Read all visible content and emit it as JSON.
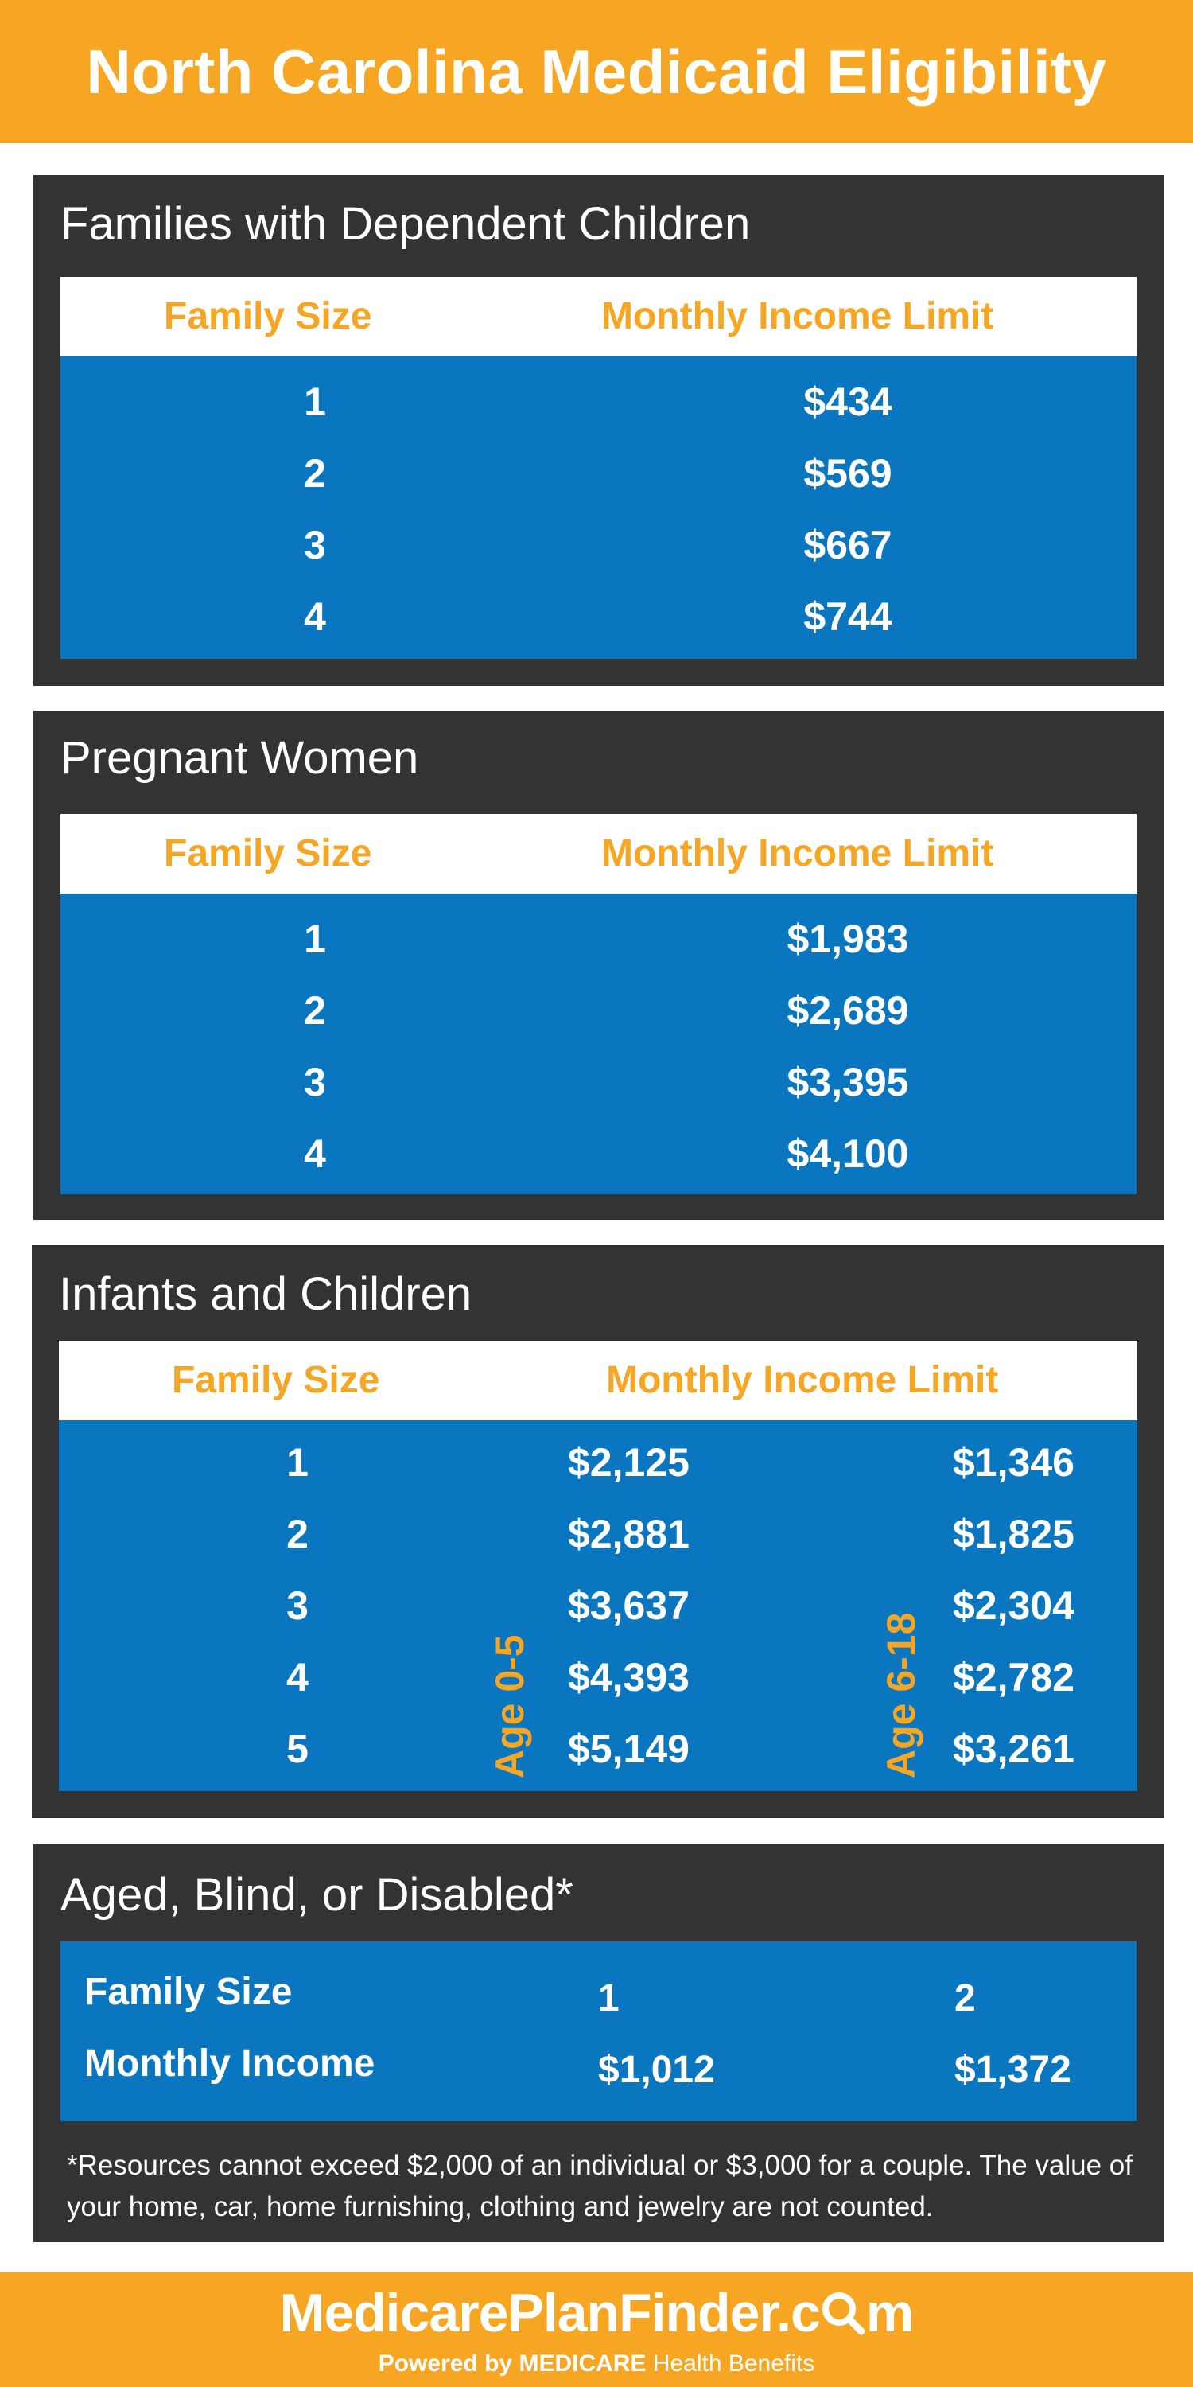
{
  "header": {
    "title": "North Carolina Medicaid Eligibility"
  },
  "families": {
    "title": "Families with Dependent Children",
    "col_size": "Family Size",
    "col_income": "Monthly Income Limit",
    "rows": [
      {
        "size": "1",
        "income": "$434"
      },
      {
        "size": "2",
        "income": "$569"
      },
      {
        "size": "3",
        "income": "$667"
      },
      {
        "size": "4",
        "income": "$744"
      }
    ]
  },
  "pregnant": {
    "title": "Pregnant Women",
    "col_size": "Family Size",
    "col_income": "Monthly Income Limit",
    "rows": [
      {
        "size": "1",
        "income": "$1,983"
      },
      {
        "size": "2",
        "income": "$2,689"
      },
      {
        "size": "3",
        "income": "$3,395"
      },
      {
        "size": "4",
        "income": "$4,100"
      }
    ]
  },
  "infants": {
    "title": "Infants and Children",
    "col_size": "Family Size",
    "col_income": "Monthly Income Limit",
    "age_group_1": "Age 0-5",
    "age_group_2": "Age 6-18",
    "rows": [
      {
        "size": "1",
        "age0_5": "$2,125",
        "age6_18": "$1,346"
      },
      {
        "size": "2",
        "age0_5": "$2,881",
        "age6_18": "$1,825"
      },
      {
        "size": "3",
        "age0_5": "$3,637",
        "age6_18": "$2,304"
      },
      {
        "size": "4",
        "age0_5": "$4,393",
        "age6_18": "$2,782"
      },
      {
        "size": "5",
        "age0_5": "$5,149",
        "age6_18": "$3,261"
      }
    ]
  },
  "aged": {
    "title": "Aged, Blind, or Disabled*",
    "size_label": "Family Size",
    "income_label": "Monthly Income",
    "size_1": "1",
    "size_2": "2",
    "income_1": "$1,012",
    "income_2": "$1,372",
    "note": "*Resources cannot exceed $2,000 of an individual or $3,000 for a couple.  The value of your home, car, home furnishing, clothing and jewelry are not counted."
  },
  "footer": {
    "brand": "MedicarePlanFinder.com",
    "brand_main": "MedicarePlanFinder.c",
    "brand_tail": "m",
    "powered_prefix": "Powered by",
    "powered_brand": "MEDICARE",
    "powered_suffix": "Health Benefits"
  }
}
